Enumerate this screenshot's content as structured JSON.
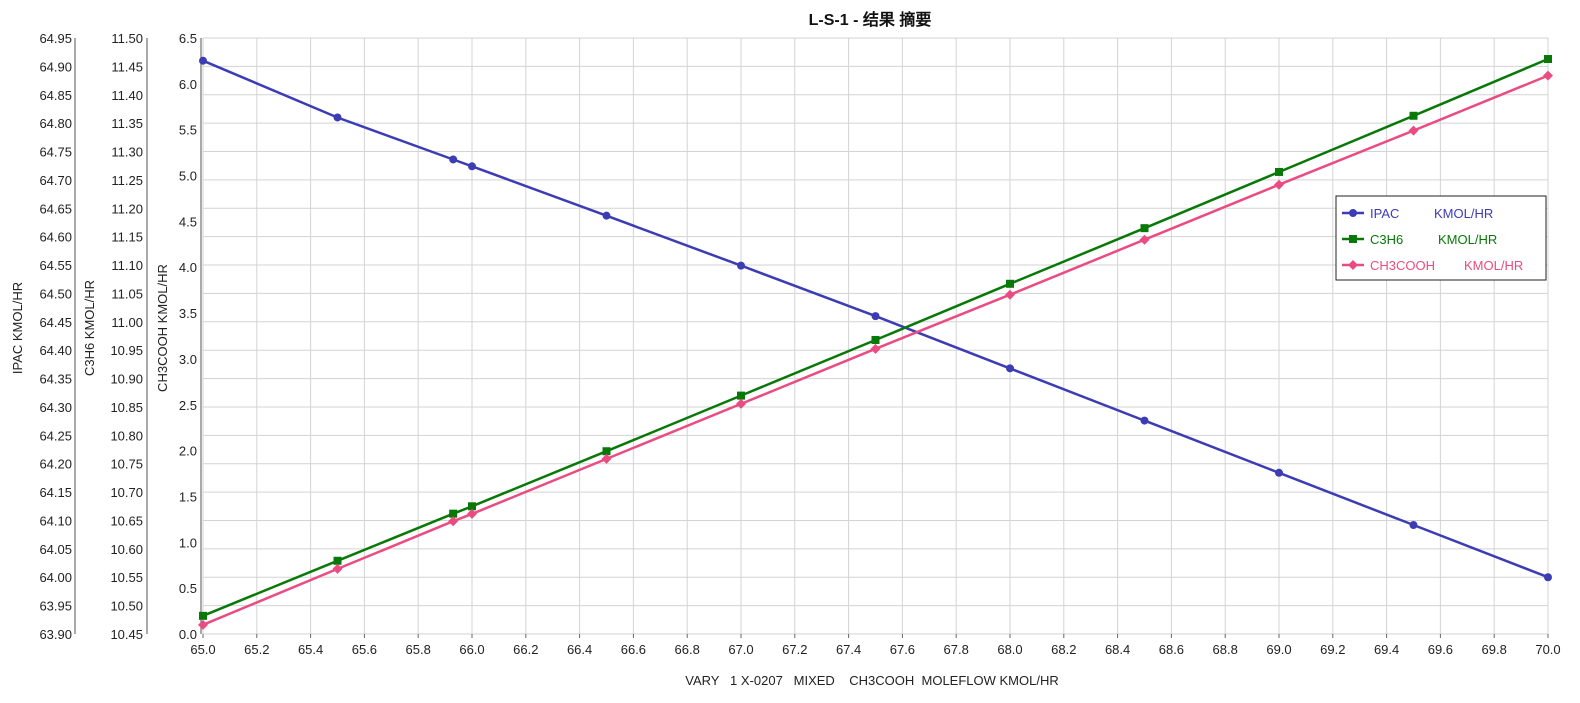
{
  "chart_data": {
    "type": "line",
    "title": "L-S-1 - 结果 摘要",
    "xlabel": "VARY   1 X-0207   MIXED    CH3COOH  MOLEFLOW KMOL/HR",
    "xlim": [
      65.0,
      70.0
    ],
    "x_ticks": [
      "65.0",
      "65.2",
      "65.4",
      "65.6",
      "65.8",
      "66.0",
      "66.2",
      "66.4",
      "66.6",
      "66.8",
      "67.0",
      "67.2",
      "67.4",
      "67.6",
      "67.8",
      "68.0",
      "68.2",
      "68.4",
      "68.6",
      "68.8",
      "69.0",
      "69.2",
      "69.4",
      "69.6",
      "69.8",
      "70.0"
    ],
    "grid": true,
    "legend_position": "right",
    "y_axes": [
      {
        "label": "IPAC      KMOL/HR",
        "range": [
          63.9,
          64.95
        ],
        "ticks": [
          "63.90",
          "63.95",
          "64.00",
          "64.05",
          "64.10",
          "64.15",
          "64.20",
          "64.25",
          "64.30",
          "64.35",
          "64.40",
          "64.45",
          "64.50",
          "64.55",
          "64.60",
          "64.65",
          "64.70",
          "64.75",
          "64.80",
          "64.85",
          "64.90",
          "64.95"
        ]
      },
      {
        "label": "C3H6      KMOL/HR",
        "range": [
          10.45,
          11.5
        ],
        "ticks": [
          "10.45",
          "10.50",
          "10.55",
          "10.60",
          "10.65",
          "10.70",
          "10.75",
          "10.80",
          "10.85",
          "10.90",
          "10.95",
          "11.00",
          "11.05",
          "11.10",
          "11.15",
          "11.20",
          "11.25",
          "11.30",
          "11.35",
          "11.40",
          "11.45",
          "11.50"
        ]
      },
      {
        "label": "CH3COOH      KMOL/HR",
        "range": [
          0.0,
          6.5
        ],
        "ticks": [
          "0.0",
          "0.5",
          "1.0",
          "1.5",
          "2.0",
          "2.5",
          "3.0",
          "3.5",
          "4.0",
          "4.5",
          "5.0",
          "5.5",
          "6.0",
          "6.5"
        ]
      }
    ],
    "series": [
      {
        "name": "IPAC",
        "unit": "KMOL/HR",
        "axis": 0,
        "color": "#3c3cb4",
        "marker": "circle",
        "x": [
          65.0,
          65.5,
          65.93,
          66.0,
          66.5,
          67.0,
          67.5,
          68.0,
          68.5,
          69.0,
          69.5,
          70.0
        ],
        "y": [
          64.91,
          64.81,
          64.736,
          64.724,
          64.637,
          64.549,
          64.46,
          64.368,
          64.276,
          64.184,
          64.092,
          64.0
        ]
      },
      {
        "name": "C3H6",
        "unit": "KMOL/HR",
        "axis": 1,
        "color": "#087808",
        "marker": "square",
        "x": [
          65.0,
          65.5,
          65.93,
          66.0,
          66.5,
          67.0,
          67.5,
          68.0,
          68.5,
          69.0,
          69.5,
          70.0
        ],
        "y": [
          10.482,
          10.579,
          10.662,
          10.675,
          10.772,
          10.87,
          10.968,
          11.067,
          11.165,
          11.264,
          11.363,
          11.463
        ]
      },
      {
        "name": "CH3COOH",
        "unit": "KMOL/HR",
        "axis": 2,
        "color": "#ea4c82",
        "marker": "diamond",
        "x": [
          65.0,
          65.5,
          65.93,
          66.0,
          66.5,
          67.0,
          67.5,
          68.0,
          68.5,
          69.0,
          69.5,
          70.0
        ],
        "y": [
          0.1,
          0.71,
          1.23,
          1.31,
          1.91,
          2.51,
          3.11,
          3.7,
          4.3,
          4.9,
          5.49,
          6.09
        ]
      }
    ]
  }
}
